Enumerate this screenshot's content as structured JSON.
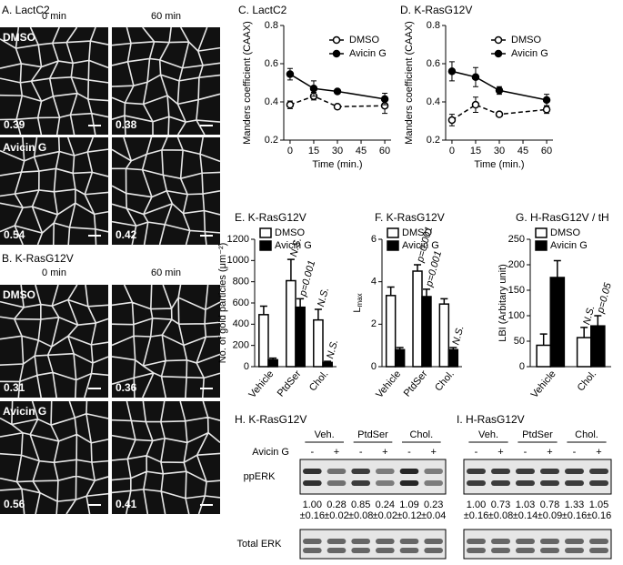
{
  "micrographs": [
    {
      "title": "A. LactC2",
      "columns": [
        "0 min",
        "60 min"
      ],
      "rows": [
        "DMSO",
        "Avicin G"
      ],
      "values": [
        0.39,
        0.38,
        0.54,
        0.42
      ]
    },
    {
      "title": "B. K-RasG12V",
      "columns": [
        "0 min",
        "60 min"
      ],
      "rows": [
        "DMSO",
        "Avicin G"
      ],
      "values": [
        0.31,
        0.36,
        0.56,
        0.41
      ]
    }
  ],
  "chart_data": [
    {
      "type": "line",
      "title": "C. LactC2",
      "xlabel": "Time (min.)",
      "ylabel": "Manders coefficient (CAAX)",
      "x": [
        0,
        15,
        30,
        60
      ],
      "xlim": [
        -4,
        64
      ],
      "xticks": [
        0,
        15,
        30,
        45,
        60
      ],
      "ylim": [
        0.2,
        0.8
      ],
      "yticks": [
        0.2,
        0.4,
        0.6,
        0.8
      ],
      "series": [
        {
          "name": "DMSO",
          "color": "#000000",
          "marker": "open",
          "line_style": "dashed",
          "values": [
            0.385,
            0.43,
            0.375,
            0.38
          ],
          "errors": [
            0.02,
            0.02,
            0.01,
            0.04
          ]
        },
        {
          "name": "Avicin G",
          "color": "#000000",
          "marker": "filled",
          "line_style": "solid",
          "values": [
            0.545,
            0.47,
            0.455,
            0.415
          ],
          "errors": [
            0.03,
            0.04,
            0.005,
            0.03
          ]
        }
      ]
    },
    {
      "type": "line",
      "title": "D. K-RasG12V",
      "xlabel": "Time (min.)",
      "ylabel": "Manders coefficient (CAAX)",
      "x": [
        0,
        15,
        30,
        60
      ],
      "xlim": [
        -4,
        64
      ],
      "xticks": [
        0,
        15,
        30,
        45,
        60
      ],
      "ylim": [
        0.2,
        0.8
      ],
      "yticks": [
        0.2,
        0.4,
        0.6,
        0.8
      ],
      "series": [
        {
          "name": "DMSO",
          "color": "#000000",
          "marker": "open",
          "line_style": "dashed",
          "values": [
            0.305,
            0.385,
            0.335,
            0.36
          ],
          "errors": [
            0.03,
            0.04,
            0.01,
            0.02
          ]
        },
        {
          "name": "Avicin G",
          "color": "#000000",
          "marker": "filled",
          "line_style": "solid",
          "values": [
            0.56,
            0.53,
            0.46,
            0.41
          ],
          "errors": [
            0.05,
            0.05,
            0.02,
            0.03
          ]
        }
      ]
    },
    {
      "type": "bar",
      "title": "E. K-RasG12V",
      "ylabel": "No. of gold particles (μm⁻²)",
      "categories": [
        "Vehicle",
        "PtdSer",
        "Chol."
      ],
      "ylim": [
        0,
        1200
      ],
      "yticks": [
        0,
        200,
        400,
        600,
        800,
        1000,
        1200
      ],
      "series": [
        {
          "name": "DMSO",
          "color": "#ffffff",
          "values": [
            490,
            810,
            440
          ],
          "errors": [
            80,
            200,
            100
          ],
          "annotations": [
            null,
            "N.S.",
            "N.S."
          ]
        },
        {
          "name": "Avicin G",
          "color": "#000000",
          "values": [
            65,
            560,
            40
          ],
          "errors": [
            15,
            80,
            10
          ],
          "annotations": [
            null,
            "p=0.001",
            "N.S."
          ]
        }
      ]
    },
    {
      "type": "bar",
      "title": "F. K-RasG12V",
      "ylabel": "L",
      "ylabel_subscript": "max",
      "categories": [
        "Vehicle",
        "PtdSer",
        "Chol."
      ],
      "ylim": [
        0,
        6
      ],
      "yticks": [
        0,
        2,
        4,
        6
      ],
      "series": [
        {
          "name": "DMSO",
          "color": "#ffffff",
          "values": [
            3.35,
            4.5,
            2.95
          ],
          "errors": [
            0.4,
            0.3,
            0.25
          ],
          "annotations": [
            null,
            "p=0.001",
            null
          ]
        },
        {
          "name": "Avicin G",
          "color": "#000000",
          "values": [
            0.8,
            3.3,
            0.8
          ],
          "errors": [
            0.1,
            0.35,
            0.1
          ],
          "annotations": [
            null,
            "p=0.001",
            "N.S."
          ]
        }
      ]
    },
    {
      "type": "bar",
      "title": "G. H-RasG12V / tH",
      "ylabel": "LBI (Arbitary unit)",
      "categories": [
        "Vehicle",
        "Chol."
      ],
      "ylim": [
        0,
        250
      ],
      "yticks": [
        0,
        50,
        100,
        150,
        200,
        250
      ],
      "series": [
        {
          "name": "DMSO",
          "color": "#ffffff",
          "values": [
            42,
            57
          ],
          "errors": [
            22,
            20
          ],
          "annotations": [
            null,
            "N.S."
          ]
        },
        {
          "name": "Avicin G",
          "color": "#000000",
          "values": [
            175,
            80
          ],
          "errors": [
            33,
            20
          ],
          "annotations": [
            null,
            "p=0.05"
          ]
        }
      ]
    }
  ],
  "blots": [
    {
      "title": "H. K-RasG12V",
      "groups": [
        "Veh.",
        "PtdSer",
        "Chol."
      ],
      "treatment": "Avicin G",
      "signs": [
        "-",
        "+",
        "-",
        "+",
        "-",
        "+"
      ],
      "rows": [
        "ppERK",
        "Total ERK"
      ],
      "quantification": [
        [
          "1.00",
          "±0.16"
        ],
        [
          "0.28",
          "±0.02"
        ],
        [
          "0.85",
          "±0.08"
        ],
        [
          "0.24",
          "±0.02"
        ],
        [
          "1.09",
          "±0.12"
        ],
        [
          "0.23",
          "±0.04"
        ]
      ]
    },
    {
      "title": "I. H-RasG12V",
      "groups": [
        "Veh.",
        "PtdSer",
        "Chol."
      ],
      "treatment": "Avicin G",
      "signs": [
        "-",
        "+",
        "-",
        "+",
        "-",
        "+"
      ],
      "rows": [
        "ppERK",
        "Total ERK"
      ],
      "quantification": [
        [
          "1.00",
          "±0.16"
        ],
        [
          "0.73",
          "±0.08"
        ],
        [
          "1.03",
          "±0.14"
        ],
        [
          "0.78",
          "±0.09"
        ],
        [
          "1.33",
          "±0.16"
        ],
        [
          "1.05",
          "±0.16"
        ]
      ]
    }
  ]
}
